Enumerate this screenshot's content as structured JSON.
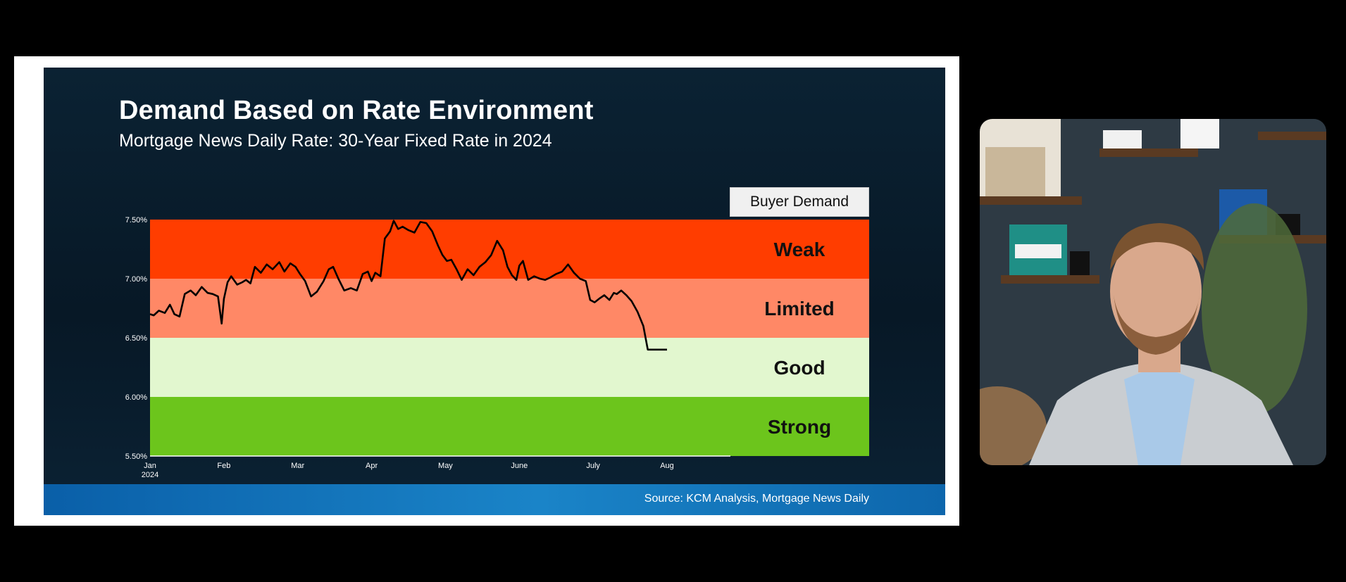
{
  "slide": {
    "title": "Demand Based on Rate Environment",
    "subtitle": "Mortgage News Daily Rate: 30-Year Fixed Rate in 2024",
    "legend_title": "Buyer Demand",
    "source": "Source: KCM Analysis, Mortgage News Daily"
  },
  "chart_data": {
    "type": "line",
    "title": "Demand Based on Rate Environment",
    "subtitle": "Mortgage News Daily Rate: 30-Year Fixed Rate in 2024",
    "xlabel": "",
    "ylabel": "",
    "ylim": [
      5.5,
      7.5
    ],
    "yticks": [
      7.5,
      7.0,
      6.5,
      6.0,
      5.5
    ],
    "ytick_labels": [
      "7.50%",
      "7.00%",
      "6.50%",
      "6.00%",
      "5.50%"
    ],
    "x_range": [
      0,
      7.3
    ],
    "xticks": [
      {
        "x": 0,
        "label": "Jan",
        "sublabel": "2024"
      },
      {
        "x": 1,
        "label": "Feb",
        "sublabel": ""
      },
      {
        "x": 2,
        "label": "Mar",
        "sublabel": ""
      },
      {
        "x": 3,
        "label": "Apr",
        "sublabel": ""
      },
      {
        "x": 4,
        "label": "May",
        "sublabel": ""
      },
      {
        "x": 5,
        "label": "June",
        "sublabel": ""
      },
      {
        "x": 6,
        "label": "July",
        "sublabel": ""
      },
      {
        "x": 7,
        "label": "Aug",
        "sublabel": ""
      }
    ],
    "bands": [
      {
        "label": "Weak",
        "from": 7.0,
        "to": 7.5,
        "color": "#ff3d00"
      },
      {
        "label": "Limited",
        "from": 6.5,
        "to": 7.0,
        "color": "#ff8866"
      },
      {
        "label": "Good",
        "from": 6.0,
        "to": 6.5,
        "color": "#e2f7cf"
      },
      {
        "label": "Strong",
        "from": 5.5,
        "to": 6.0,
        "color": "#6cc51c"
      }
    ],
    "series": [
      {
        "name": "30-Year Fixed Rate",
        "color": "#000000",
        "x": [
          0.0,
          0.05,
          0.12,
          0.2,
          0.27,
          0.33,
          0.4,
          0.47,
          0.55,
          0.62,
          0.7,
          0.78,
          0.85,
          0.92,
          0.97,
          1.0,
          1.05,
          1.1,
          1.18,
          1.25,
          1.3,
          1.36,
          1.42,
          1.5,
          1.58,
          1.66,
          1.75,
          1.82,
          1.9,
          1.97,
          2.03,
          2.1,
          2.18,
          2.26,
          2.35,
          2.42,
          2.48,
          2.55,
          2.63,
          2.72,
          2.8,
          2.88,
          2.95,
          3.0,
          3.05,
          3.12,
          3.18,
          3.25,
          3.3,
          3.36,
          3.42,
          3.5,
          3.58,
          3.66,
          3.74,
          3.82,
          3.9,
          3.96,
          4.02,
          4.08,
          4.15,
          4.22,
          4.3,
          4.38,
          4.46,
          4.54,
          4.62,
          4.7,
          4.78,
          4.84,
          4.9,
          4.96,
          5.0,
          5.05,
          5.12,
          5.2,
          5.28,
          5.35,
          5.42,
          5.5,
          5.58,
          5.66,
          5.74,
          5.82,
          5.9,
          5.96,
          6.02,
          6.08,
          6.15,
          6.22,
          6.28,
          6.32,
          6.38,
          6.45,
          6.52,
          6.6,
          6.68,
          6.74,
          6.8,
          6.86,
          6.92,
          7.0
        ],
        "y": [
          6.7,
          6.69,
          6.73,
          6.71,
          6.78,
          6.7,
          6.68,
          6.87,
          6.9,
          6.86,
          6.93,
          6.88,
          6.87,
          6.85,
          6.62,
          6.83,
          6.97,
          7.02,
          6.95,
          6.97,
          6.99,
          6.96,
          7.1,
          7.05,
          7.12,
          7.08,
          7.14,
          7.06,
          7.13,
          7.1,
          7.04,
          6.98,
          6.85,
          6.89,
          6.98,
          7.08,
          7.1,
          7.0,
          6.9,
          6.92,
          6.9,
          7.04,
          7.06,
          6.98,
          7.05,
          7.02,
          7.34,
          7.4,
          7.49,
          7.42,
          7.44,
          7.41,
          7.39,
          7.48,
          7.47,
          7.4,
          7.28,
          7.2,
          7.15,
          7.16,
          7.08,
          6.99,
          7.08,
          7.03,
          7.1,
          7.14,
          7.2,
          7.32,
          7.24,
          7.1,
          7.03,
          6.99,
          7.11,
          7.15,
          6.99,
          7.02,
          7.0,
          6.99,
          7.01,
          7.04,
          7.06,
          7.12,
          7.05,
          7.0,
          6.98,
          6.82,
          6.8,
          6.83,
          6.86,
          6.82,
          6.88,
          6.87,
          6.9,
          6.86,
          6.81,
          6.72,
          6.6,
          6.4,
          6.4,
          6.4,
          6.4,
          6.4
        ]
      }
    ]
  },
  "video": {
    "colors": {
      "wall": "#2e3a44",
      "shelf": "#5a3a22",
      "suit": "#c9cdd1",
      "shirt": "#a9c9e8",
      "skin": "#d9a88c",
      "hair": "#7a5330",
      "plant": "#4f6b3a"
    }
  }
}
